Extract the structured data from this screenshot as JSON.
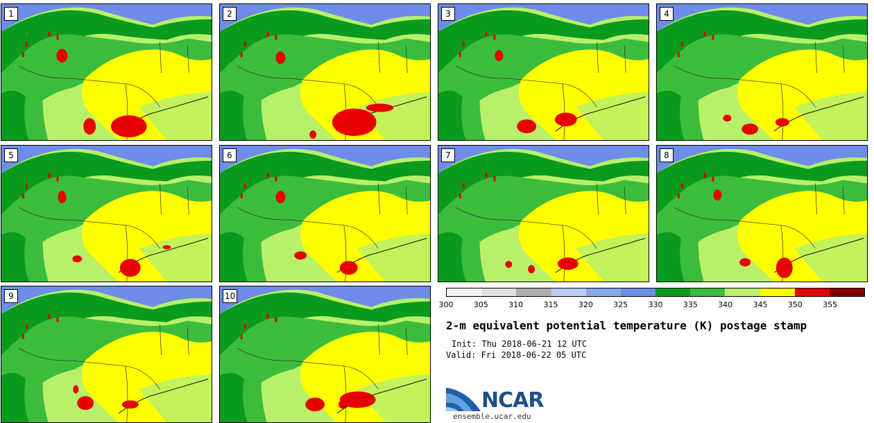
{
  "title": "2-m equivalent potential temperature (K) postage stamp",
  "init": "Init: Thu 2018-06-21 12 UTC",
  "valid": "Valid: Fri 2018-06-22 05 UTC",
  "logo": {
    "name": "NCAR",
    "url": "ensemble.ucar.edu"
  },
  "colorbar": {
    "ticks": [
      "300",
      "305",
      "310",
      "315",
      "320",
      "325",
      "330",
      "335",
      "340",
      "345",
      "350",
      "355"
    ],
    "colors": [
      "#f2f2f2",
      "#e0e0e0",
      "#b0b0b0",
      "#b8d0f8",
      "#8aa8f0",
      "#6e8cea",
      "#0a9a1e",
      "#3cbc3c",
      "#b8f06a",
      "#ffff00",
      "#e60000",
      "#820000"
    ]
  },
  "members": [
    {
      "label": "1"
    },
    {
      "label": "2"
    },
    {
      "label": "3"
    },
    {
      "label": "4"
    },
    {
      "label": "5"
    },
    {
      "label": "6"
    },
    {
      "label": "7"
    },
    {
      "label": "8"
    },
    {
      "label": "9"
    },
    {
      "label": "10"
    }
  ]
}
